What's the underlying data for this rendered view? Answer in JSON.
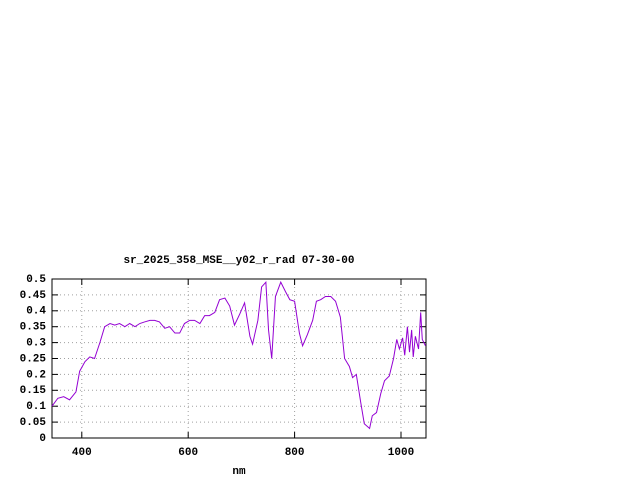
{
  "chart_data": {
    "type": "line",
    "title": "sr_2025_358_MSE__y02_r_rad 07-30-00",
    "x_label": "nm",
    "xlim": [
      344,
      1047
    ],
    "xticks": [
      400,
      600,
      800,
      1000
    ],
    "ylim": [
      0,
      0.5
    ],
    "yticks": [
      0,
      0.05,
      0.1,
      0.15,
      0.2,
      0.25,
      0.3,
      0.35,
      0.4,
      0.45,
      0.5
    ],
    "grid": true,
    "x": [
      344,
      355,
      366,
      377,
      389,
      396,
      406,
      415,
      424,
      434,
      443,
      453,
      462,
      471,
      481,
      490,
      500,
      509,
      518,
      528,
      537,
      546,
      556,
      565,
      575,
      584,
      593,
      603,
      612,
      622,
      631,
      640,
      650,
      659,
      669,
      678,
      687,
      697,
      706,
      716,
      721,
      731,
      738,
      746,
      751,
      757,
      764,
      774,
      783,
      791,
      800,
      809,
      815,
      824,
      834,
      841,
      849,
      858,
      868,
      877,
      886,
      894,
      903,
      909,
      916,
      924,
      931,
      941,
      946,
      954,
      962,
      969,
      978,
      986,
      992,
      997,
      1003,
      1007,
      1012,
      1016,
      1020,
      1023,
      1027,
      1033,
      1037,
      1040,
      1046
    ],
    "series": [
      {
        "color": "#9400d3",
        "values": [
          0.1,
          0.125,
          0.13,
          0.12,
          0.145,
          0.21,
          0.24,
          0.255,
          0.25,
          0.3,
          0.35,
          0.36,
          0.355,
          0.36,
          0.35,
          0.36,
          0.35,
          0.36,
          0.365,
          0.37,
          0.37,
          0.365,
          0.345,
          0.35,
          0.33,
          0.33,
          0.36,
          0.37,
          0.37,
          0.36,
          0.385,
          0.385,
          0.395,
          0.435,
          0.44,
          0.415,
          0.355,
          0.39,
          0.425,
          0.32,
          0.295,
          0.37,
          0.475,
          0.49,
          0.34,
          0.25,
          0.445,
          0.49,
          0.46,
          0.435,
          0.43,
          0.33,
          0.29,
          0.325,
          0.37,
          0.43,
          0.435,
          0.445,
          0.445,
          0.43,
          0.38,
          0.25,
          0.225,
          0.19,
          0.2,
          0.115,
          0.045,
          0.03,
          0.07,
          0.08,
          0.14,
          0.18,
          0.195,
          0.25,
          0.31,
          0.28,
          0.315,
          0.26,
          0.35,
          0.27,
          0.34,
          0.255,
          0.32,
          0.28,
          0.395,
          0.31,
          0.29
        ]
      }
    ]
  }
}
